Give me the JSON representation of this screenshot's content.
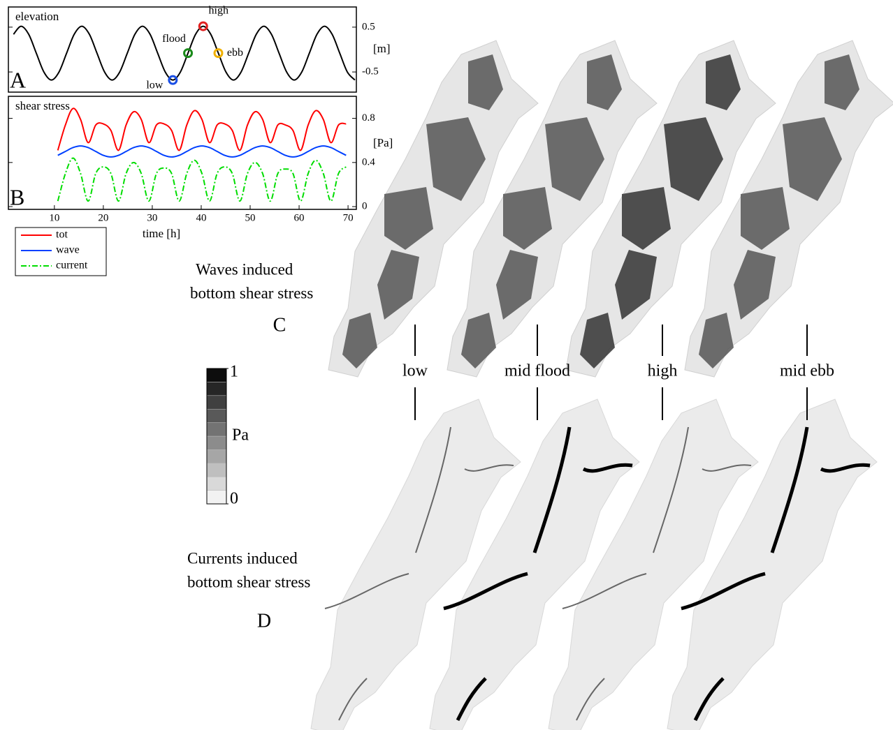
{
  "chart_data": [
    {
      "type": "line",
      "title": "elevation",
      "panel_label": "A",
      "ylabel": "[m]",
      "xlim": [
        0.6,
        71.7
      ],
      "ylim": [
        -0.95,
        0.95
      ],
      "yticks": [
        0.5,
        -0.5
      ],
      "x": [
        1.65,
        3.2,
        4.75,
        6.3,
        7.85,
        9.4,
        10.95,
        12.5,
        14.05,
        15.6,
        17.15,
        18.7,
        20.25,
        21.8,
        23.35,
        24.9,
        26.45,
        28,
        29.55,
        31.1,
        32.65,
        34.2,
        35.75,
        37.3,
        38.85,
        40.4,
        41.95,
        43.5,
        45.05,
        46.6,
        48.15,
        49.7,
        51.25,
        52.8,
        54.35,
        55.9,
        57.45,
        59,
        60.55,
        62.1,
        63.65,
        65.2,
        66.75,
        68.3,
        69.85,
        71.4
      ],
      "series": [
        {
          "color": "#000000",
          "values": [
            0.34,
            0.52,
            0.34,
            -0.08,
            -0.5,
            -0.68,
            -0.5,
            -0.08,
            0.34,
            0.52,
            0.34,
            -0.08,
            -0.5,
            -0.68,
            -0.5,
            -0.08,
            0.34,
            0.52,
            0.34,
            -0.08,
            -0.5,
            -0.68,
            -0.5,
            -0.08,
            0.34,
            0.52,
            0.34,
            -0.08,
            -0.5,
            -0.68,
            -0.5,
            -0.08,
            0.34,
            0.52,
            0.34,
            -0.08,
            -0.5,
            -0.68,
            -0.5,
            -0.08,
            0.34,
            0.52,
            0.34,
            -0.08,
            -0.5,
            -0.68
          ]
        }
      ],
      "markers": [
        {
          "label": "low",
          "x": 34.2,
          "y": -0.68,
          "color": "#1a4fe6"
        },
        {
          "label": "flood",
          "x": 37.3,
          "y": -0.08,
          "color": "#1a8a1a"
        },
        {
          "label": "high",
          "x": 40.4,
          "y": 0.52,
          "color": "#e02020"
        },
        {
          "label": "ebb",
          "x": 43.5,
          "y": -0.08,
          "color": "#f0b000"
        }
      ]
    },
    {
      "type": "line",
      "title": "shear stress",
      "panel_label": "B",
      "ylabel": "[Pa]",
      "xlabel": "time [h]",
      "xlim": [
        0.6,
        71.7
      ],
      "xticks": [
        10,
        20,
        30,
        40,
        50,
        60,
        70
      ],
      "ylim": [
        -0.025,
        1.0
      ],
      "yticks": [
        0.8,
        0.4,
        0
      ],
      "x": [
        10.7,
        12.25,
        13.8,
        15.35,
        16.9,
        18.45,
        20,
        21.55,
        23.1,
        24.65,
        26.2,
        27.75,
        29.3,
        30.85,
        32.4,
        33.95,
        35.5,
        37.05,
        38.6,
        40.15,
        41.7,
        43.25,
        44.8,
        46.35,
        47.9,
        49.45,
        51,
        52.55,
        54.1,
        55.65,
        57.2,
        58.75,
        60.3,
        61.85,
        63.4,
        64.95,
        66.5,
        68.05,
        69.6
      ],
      "legend": "below-left",
      "series": [
        {
          "name": "tot",
          "color": "#ff0000",
          "linestyle": "solid",
          "values": [
            0.51,
            0.74,
            0.89,
            0.79,
            0.58,
            0.74,
            0.75,
            0.69,
            0.51,
            0.74,
            0.86,
            0.79,
            0.58,
            0.74,
            0.75,
            0.69,
            0.51,
            0.74,
            0.87,
            0.79,
            0.58,
            0.74,
            0.75,
            0.69,
            0.51,
            0.74,
            0.86,
            0.79,
            0.58,
            0.74,
            0.74,
            0.69,
            0.51,
            0.74,
            0.87,
            0.79,
            0.58,
            0.74,
            0.75
          ]
        },
        {
          "name": "wave",
          "color": "#0040ff",
          "linestyle": "solid",
          "values": [
            0.465,
            0.5,
            0.535,
            0.55,
            0.535,
            0.5,
            0.465,
            0.45,
            0.465,
            0.5,
            0.535,
            0.55,
            0.535,
            0.5,
            0.465,
            0.45,
            0.465,
            0.5,
            0.535,
            0.55,
            0.535,
            0.5,
            0.465,
            0.45,
            0.465,
            0.5,
            0.535,
            0.55,
            0.535,
            0.5,
            0.465,
            0.45,
            0.465,
            0.5,
            0.535,
            0.55,
            0.535,
            0.5,
            0.465
          ]
        },
        {
          "name": "current",
          "color": "#00dd00",
          "linestyle": "dash-dot",
          "values": [
            0.05,
            0.3,
            0.44,
            0.3,
            0.05,
            0.3,
            0.36,
            0.3,
            0.05,
            0.3,
            0.4,
            0.3,
            0.05,
            0.3,
            0.35,
            0.3,
            0.05,
            0.3,
            0.42,
            0.3,
            0.05,
            0.3,
            0.36,
            0.3,
            0.05,
            0.3,
            0.4,
            0.3,
            0.05,
            0.3,
            0.34,
            0.3,
            0.05,
            0.3,
            0.42,
            0.3,
            0.05,
            0.3,
            0.36
          ]
        }
      ]
    }
  ],
  "maps": {
    "phases": [
      "low",
      "mid flood",
      "high",
      "mid ebb"
    ],
    "waves": {
      "panel_label": "C",
      "caption": [
        "Waves induced",
        "bottom shear stress"
      ]
    },
    "currents": {
      "panel_label": "D",
      "caption": [
        "Currents induced",
        "bottom shear stress"
      ]
    },
    "colorbar": {
      "label": "Pa",
      "lim": [
        0,
        1
      ],
      "ticks": [
        1,
        0
      ]
    }
  }
}
